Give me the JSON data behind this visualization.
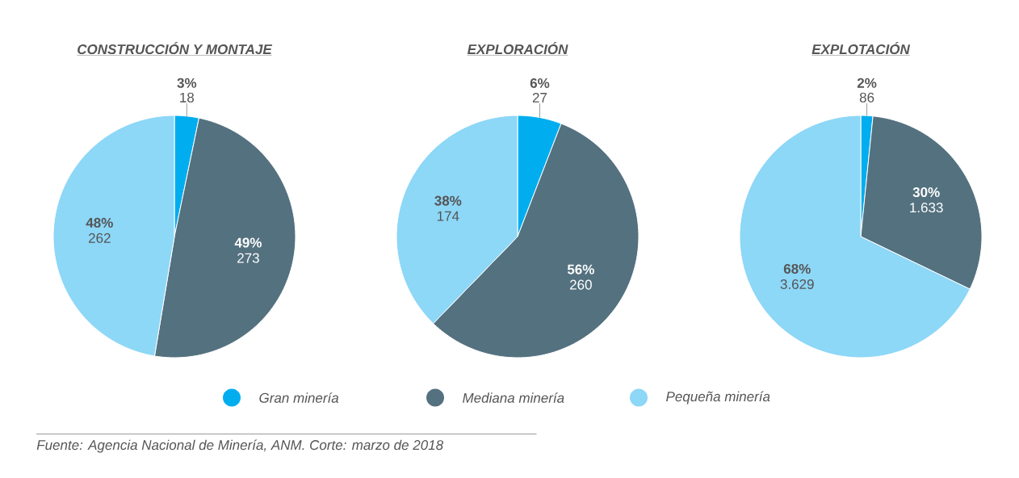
{
  "chart_data": [
    {
      "type": "pie",
      "title": "CONSTRUCCIÓN Y MONTAJE",
      "categories": [
        null,
        null,
        null
      ],
      "values": [
        18,
        273,
        262
      ],
      "colors": [
        "#00aeef",
        "#54717f",
        "#8dd7f7"
      ],
      "value_labels": [
        "**3%** 18",
        "**49%** 273",
        "**48%** 262"
      ],
      "legend": false,
      "annotations": [
        "Fuente: Agencia Nacional de Minería, ANM. Corte: marzo de 2018"
      ]
    },
    {
      "type": "pie",
      "title": "EXPLORACIÓN",
      "categories": [
        "Gran minería",
        "Mediana minería",
        "Pequeña minería"
      ],
      "values": [
        27,
        260,
        174
      ],
      "colors": [
        "#00aeef",
        "#54717f",
        "#8dd7f7"
      ],
      "value_labels": [
        "**6%** 27",
        "**56%** 260",
        "**38%** 174"
      ],
      "legend": "bottom"
    },
    {
      "type": "pie",
      "title": "EXPLOTACIÓN",
      "categories": [
        null,
        null,
        null
      ],
      "values": [
        86,
        1633,
        3629
      ],
      "colors": [
        "#00aeef",
        "#54717f",
        "#8dd7f7"
      ],
      "value_labels": [
        "**2%** 86",
        "**30%** 1.633",
        "**68%** 3.629"
      ],
      "legend": false
    }
  ]
}
